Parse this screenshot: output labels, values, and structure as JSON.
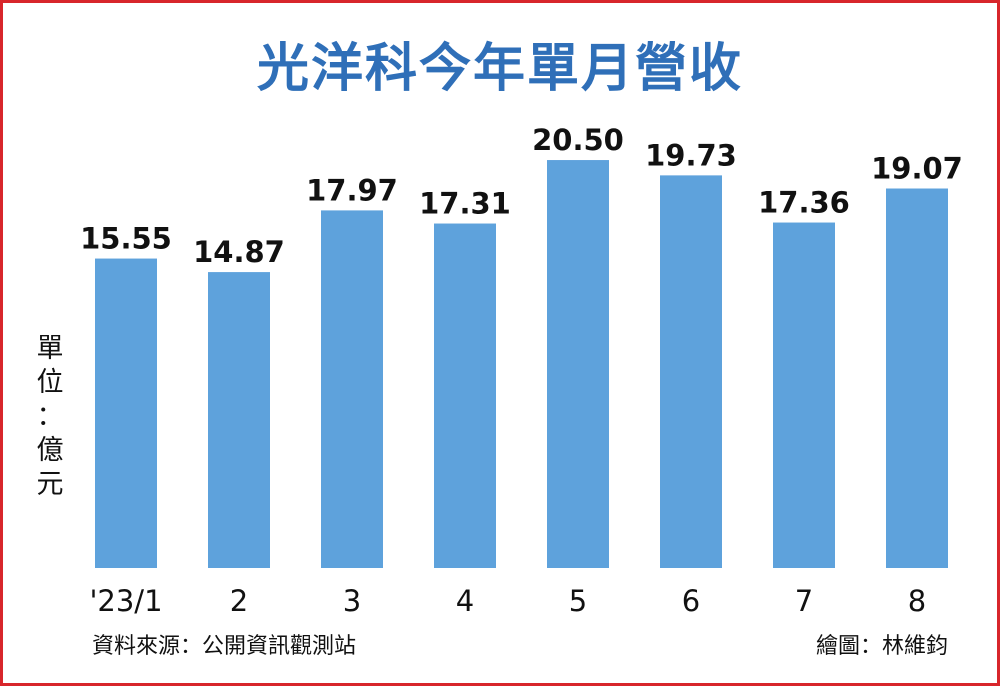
{
  "title": "光洋科今年單月營收",
  "unit_label": [
    "單",
    "位",
    "：",
    "億",
    "元"
  ],
  "source": "資料來源：公開資訊觀測站",
  "credit": "繪圖：林維鈞",
  "colors": {
    "bar": "#5ea2dc",
    "title": "#2f6fb8",
    "border": "#d8262b"
  },
  "chart_data": {
    "type": "bar",
    "categories": [
      "'23/1",
      "2",
      "3",
      "4",
      "5",
      "6",
      "7",
      "8"
    ],
    "values": [
      15.55,
      14.87,
      17.97,
      17.31,
      20.5,
      19.73,
      17.36,
      19.07
    ],
    "value_labels": [
      "15.55",
      "14.87",
      "17.97",
      "17.31",
      "20.50",
      "19.73",
      "17.36",
      "19.07"
    ],
    "ylabel": "單位：億元",
    "ylim": [
      0,
      21
    ],
    "grid": false,
    "legend": "none"
  }
}
